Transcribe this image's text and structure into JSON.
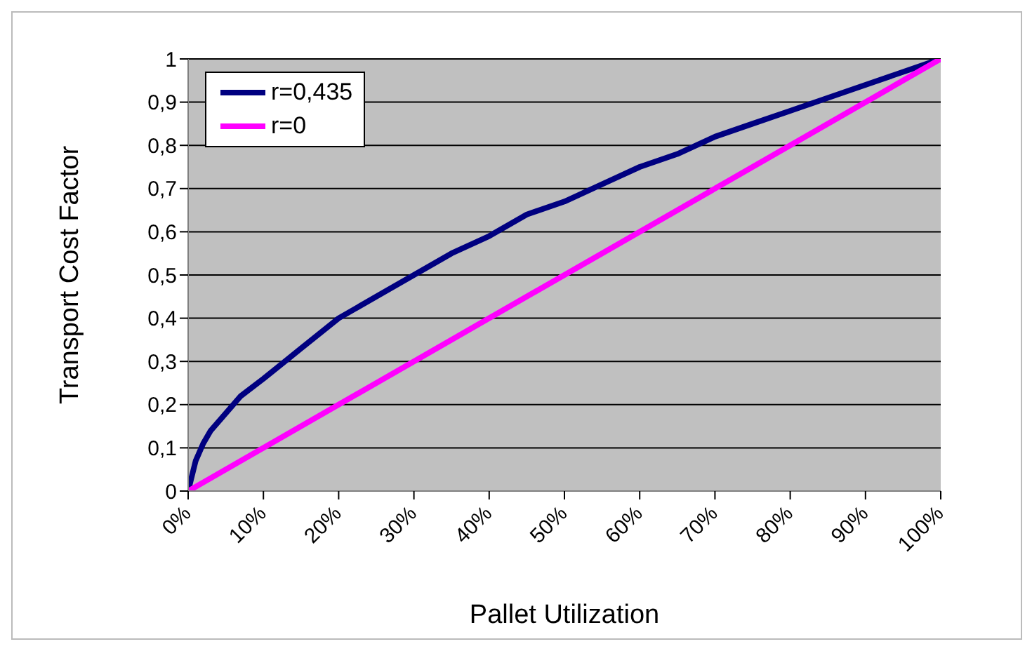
{
  "chart_data": {
    "type": "line",
    "xlabel": "Pallet Utilization",
    "ylabel": "Transport Cost Factor",
    "series": [
      {
        "name": "r=0,435",
        "color": "#000080",
        "x": [
          0,
          1,
          2,
          3,
          5,
          7,
          10,
          15,
          20,
          25,
          30,
          35,
          40,
          45,
          50,
          55,
          60,
          65,
          70,
          75,
          80,
          85,
          90,
          95,
          100
        ],
        "values": [
          0,
          0.07,
          0.11,
          0.14,
          0.18,
          0.22,
          0.26,
          0.33,
          0.4,
          0.45,
          0.5,
          0.55,
          0.59,
          0.64,
          0.67,
          0.71,
          0.75,
          0.78,
          0.82,
          0.85,
          0.88,
          0.91,
          0.94,
          0.97,
          1
        ]
      },
      {
        "name": "r=0",
        "color": "#ff00ff",
        "x": [
          0,
          100
        ],
        "values": [
          0,
          1
        ]
      }
    ],
    "xlim": [
      0,
      100
    ],
    "xticks": [
      {
        "value": 0,
        "label": "0%"
      },
      {
        "value": 10,
        "label": "10%"
      },
      {
        "value": 20,
        "label": "20%"
      },
      {
        "value": 30,
        "label": "30%"
      },
      {
        "value": 40,
        "label": "40%"
      },
      {
        "value": 50,
        "label": "50%"
      },
      {
        "value": 60,
        "label": "60%"
      },
      {
        "value": 70,
        "label": "70%"
      },
      {
        "value": 80,
        "label": "80%"
      },
      {
        "value": 90,
        "label": "90%"
      },
      {
        "value": 100,
        "label": "100%"
      }
    ],
    "ylim": [
      0,
      1
    ],
    "yticks": [
      0,
      {
        "value": 0.1,
        "label": "0,1"
      },
      {
        "value": 0.2,
        "label": "0,2"
      },
      {
        "value": 0.3,
        "label": "0,3"
      },
      {
        "value": 0.4,
        "label": "0,4"
      },
      {
        "value": 0.5,
        "label": "0,5"
      },
      {
        "value": 0.6,
        "label": "0,6"
      },
      {
        "value": 0.7,
        "label": "0,7"
      },
      {
        "value": 0.8,
        "label": "0,8"
      },
      {
        "value": 0.9,
        "label": "0,9"
      },
      1
    ],
    "grid": "y",
    "legend": "top left",
    "marker": "none",
    "line_style": "solid"
  }
}
